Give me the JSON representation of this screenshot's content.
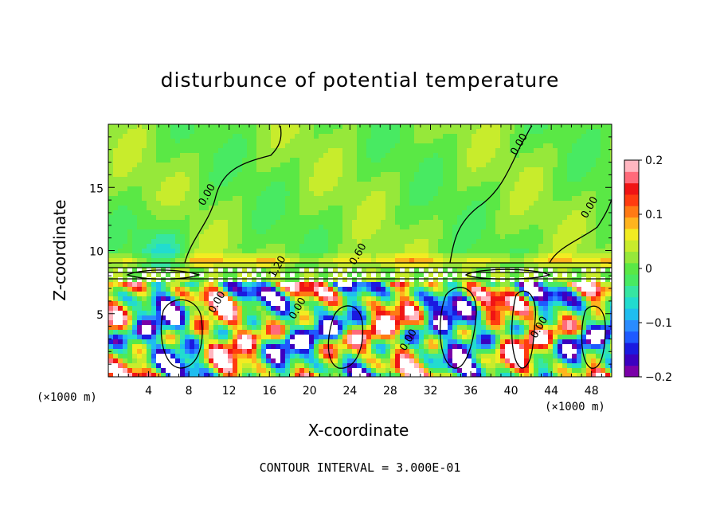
{
  "chart_data": {
    "type": "heatmap",
    "title": "disturbunce of potential temperature",
    "xlabel": "X-coordinate",
    "ylabel": "Z-coordinate",
    "x_unit_left": "(×1000 m)",
    "x_unit_right": "(×1000 m)",
    "xlim": [
      0,
      50
    ],
    "ylim": [
      0,
      20
    ],
    "x_ticks": [
      4,
      8,
      12,
      16,
      20,
      24,
      28,
      32,
      36,
      40,
      44,
      48
    ],
    "y_ticks": [
      5,
      10,
      15
    ],
    "colorbar": {
      "range": [
        -0.2,
        0.2
      ],
      "tick_labels": [
        "0.2",
        "0.1",
        "0",
        "−0.1",
        "−0.2"
      ],
      "tick_values": [
        0.2,
        0.1,
        0,
        -0.1,
        -0.2
      ],
      "colors": [
        "#7a00a8",
        "#3b00c0",
        "#1a1ae0",
        "#1e5aff",
        "#2a8cff",
        "#1fbdf0",
        "#22dccf",
        "#36e6a2",
        "#48ea62",
        "#5ae845",
        "#96e83a",
        "#c8ec2c",
        "#f2ec22",
        "#ffb41e",
        "#ff7a14",
        "#ff3c10",
        "#f01414",
        "#ff6a7a",
        "#ffb6c0"
      ]
    },
    "contour_labels": [
      {
        "text": "0.00",
        "x": 9.5,
        "z": 13.5
      },
      {
        "text": "0.00",
        "x": 40.5,
        "z": 17.5
      },
      {
        "text": "0.00",
        "x": 47.5,
        "z": 12.5
      },
      {
        "text": "0.60",
        "x": 24.5,
        "z": 8.8
      },
      {
        "text": "1.20",
        "x": 16.5,
        "z": 7.8
      },
      {
        "text": "0.00",
        "x": 18.5,
        "z": 4.5
      },
      {
        "text": "0.00",
        "x": 29.5,
        "z": 2.0
      },
      {
        "text": "0.00",
        "x": 10.5,
        "z": 5.0
      },
      {
        "text": "0.00",
        "x": 42.5,
        "z": 3.0
      }
    ],
    "footer": "CONTOUR INTERVAL = 3.000E-01"
  }
}
